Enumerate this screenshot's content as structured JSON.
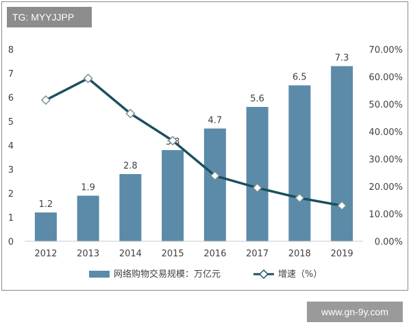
{
  "watermark_top": "TG: MYYJJPP",
  "watermark_bottom": "www.gn-9y.com",
  "chart_data": {
    "type": "bar",
    "categories": [
      "2012",
      "2013",
      "2014",
      "2015",
      "2016",
      "2017",
      "2018",
      "2019"
    ],
    "series": [
      {
        "name": "网络购物交易规模：万亿元",
        "type": "bar",
        "axis": "left",
        "values": [
          1.2,
          1.9,
          2.8,
          3.8,
          4.7,
          5.6,
          6.5,
          7.3
        ],
        "color": "#5b8ba8"
      },
      {
        "name": "增速（%）",
        "type": "line",
        "axis": "right",
        "values": [
          51.5,
          59.4,
          46.6,
          36.7,
          23.9,
          19.5,
          15.8,
          13.0
        ],
        "color": "#1b4f5e"
      }
    ],
    "y_left": {
      "min": 0,
      "max": 8,
      "ticks": [
        "0",
        "1",
        "2",
        "3",
        "4",
        "5",
        "6",
        "7",
        "8"
      ]
    },
    "y_right": {
      "min": 0,
      "max": 70,
      "ticks": [
        "0.00%",
        "10.00%",
        "20.00%",
        "30.00%",
        "40.00%",
        "50.00%",
        "60.00%",
        "70.00%"
      ]
    },
    "data_labels": [
      "1.2",
      "1.9",
      "2.8",
      "3.8",
      "4.7",
      "5.6",
      "6.5",
      "7.3"
    ],
    "legend": [
      "网络购物交易规模：万亿元",
      "增速（%）"
    ],
    "legend_position": "bottom"
  }
}
